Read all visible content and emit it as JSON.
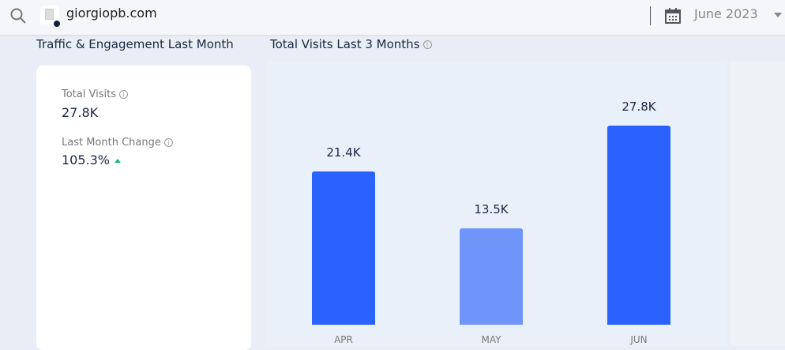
{
  "header": {
    "domain": "giorgiopb.com",
    "date": "June 2023"
  },
  "left": {
    "title": "Traffic & Engagement Last Month",
    "total_visits_label": "Total Visits",
    "total_visits": "27.8K",
    "change_label": "Last Month Change",
    "change": "105.3%",
    "change_direction": "up"
  },
  "colors": {
    "bar": "#2962ff",
    "bar_light": "#6f95fb",
    "up": "#1bb37a"
  },
  "chart_data": {
    "type": "bar",
    "title": "Total Visits Last 3 Months",
    "categories": [
      "APR",
      "MAY",
      "JUN"
    ],
    "values": [
      21400,
      13500,
      27800
    ],
    "labels": [
      "21.4K",
      "13.5K",
      "27.8K"
    ],
    "ylim": [
      0,
      30000
    ],
    "grid": false
  }
}
